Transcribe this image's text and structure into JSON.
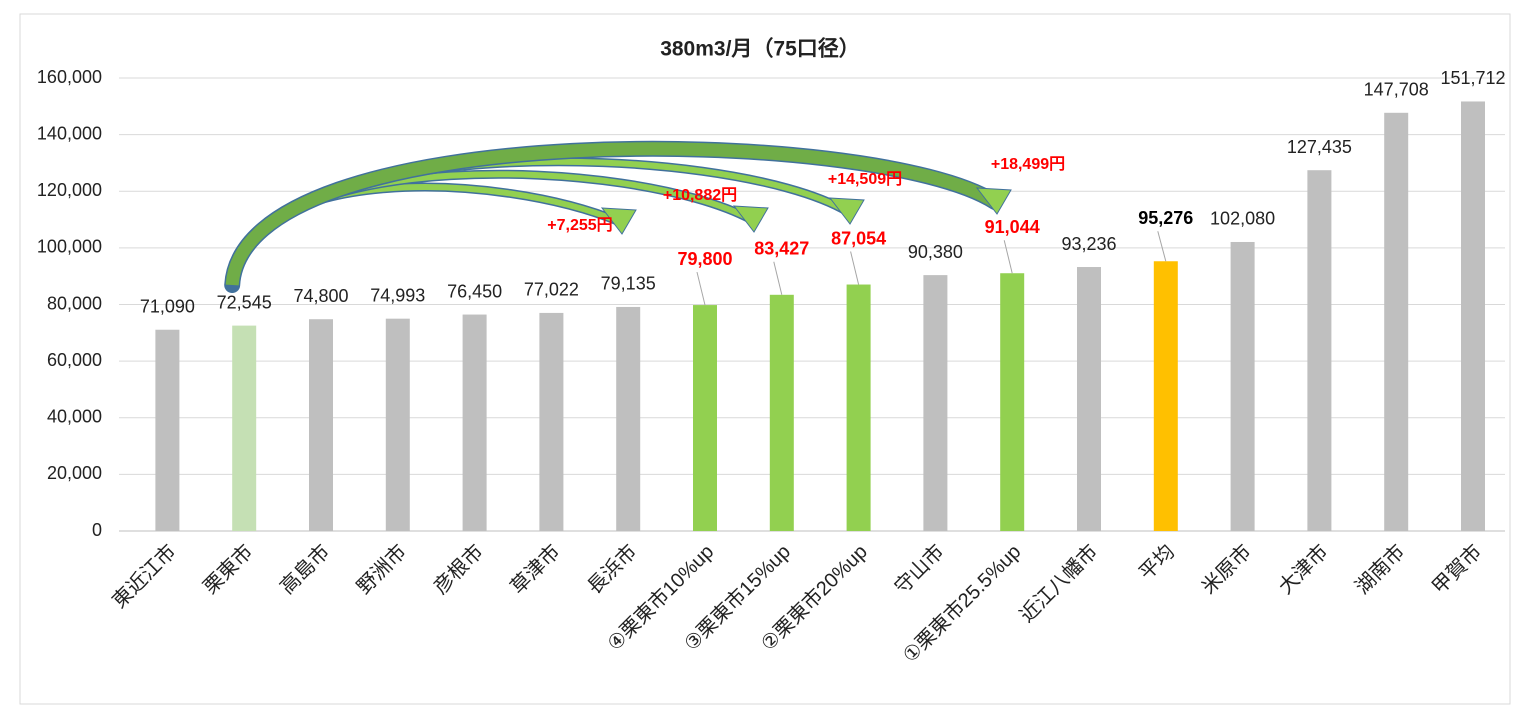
{
  "chart_data": {
    "type": "bar",
    "title": "380m3/月（75口径）",
    "categories": [
      "東近江市",
      "栗東市",
      "高島市",
      "野洲市",
      "彦根市",
      "草津市",
      "長浜市",
      "④栗東市10%up",
      "③栗東市15%up",
      "②栗東市20%up",
      "守山市",
      "①栗東市25.5%up",
      "近江八幡市",
      "平均",
      "米原市",
      "大津市",
      "湖南市",
      "甲賀市"
    ],
    "values": [
      71090,
      72545,
      74800,
      74993,
      76450,
      77022,
      79135,
      79800,
      83427,
      87054,
      90380,
      91044,
      93236,
      95276,
      102080,
      127435,
      147708,
      151712
    ],
    "value_labels": [
      "71,090",
      "72,545",
      "74,800",
      "74,993",
      "76,450",
      "77,022",
      "79,135",
      "79,800",
      "83,427",
      "87,054",
      "90,380",
      "91,044",
      "93,236",
      "95,276",
      "102,080",
      "127,435",
      "147,708",
      "151,712"
    ],
    "colors": [
      "#bfbfbf",
      "#c5e0b4",
      "#bfbfbf",
      "#bfbfbf",
      "#bfbfbf",
      "#bfbfbf",
      "#bfbfbf",
      "#92d050",
      "#92d050",
      "#92d050",
      "#bfbfbf",
      "#92d050",
      "#bfbfbf",
      "#ffc000",
      "#bfbfbf",
      "#bfbfbf",
      "#bfbfbf",
      "#bfbfbf"
    ],
    "value_label_colors": [
      "#222222",
      "#222222",
      "#222222",
      "#222222",
      "#222222",
      "#222222",
      "#222222",
      "#ff0000",
      "#ff0000",
      "#ff0000",
      "#222222",
      "#ff0000",
      "#222222",
      "#000000",
      "#222222",
      "#222222",
      "#222222",
      "#222222"
    ],
    "value_label_bold": [
      false,
      false,
      false,
      false,
      false,
      false,
      false,
      true,
      true,
      true,
      false,
      true,
      false,
      true,
      false,
      false,
      false,
      false
    ],
    "annotations": [
      "+7,255円",
      "+10,882円",
      "+14,509円",
      "+18,499円"
    ],
    "ylim": [
      0,
      160000
    ],
    "yticks": [
      0,
      {
        "value": 20000,
        "label": "20,000"
      },
      {
        "value": 40000,
        "label": "40,000"
      },
      {
        "value": 60000,
        "label": "60,000"
      },
      {
        "value": 80000,
        "label": "80,000"
      },
      {
        "value": 100000,
        "label": "100,000"
      },
      {
        "value": 120000,
        "label": "120,000"
      },
      {
        "value": 140000,
        "label": "140,000"
      },
      {
        "value": 160000,
        "label": "160,000"
      }
    ],
    "grid": true
  }
}
